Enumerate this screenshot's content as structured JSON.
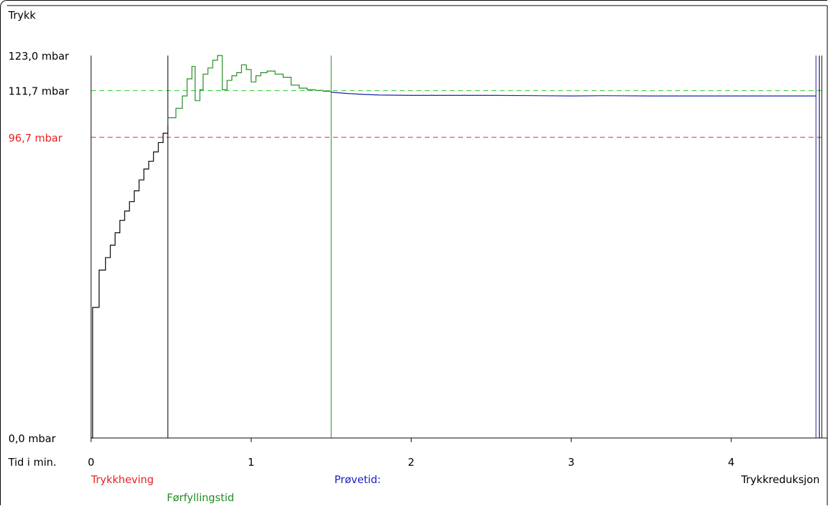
{
  "chart_data": {
    "type": "line",
    "title": "",
    "ylabel": "Trykk",
    "xlabel": "Tid i min.",
    "xlim": [
      0,
      4.6
    ],
    "ylim": [
      0,
      123.0
    ],
    "x_ticks": [
      {
        "value": 0,
        "label": "0"
      },
      {
        "value": 1,
        "label": "1"
      },
      {
        "value": 2,
        "label": "2"
      },
      {
        "value": 3,
        "label": "3"
      },
      {
        "value": 4,
        "label": "4"
      }
    ],
    "y_ticks": [
      {
        "value": 0,
        "label": "0,0 mbar",
        "color": "#000000"
      },
      {
        "value": 96.7,
        "label": "96,7 mbar",
        "color": "#e82020"
      },
      {
        "value": 111.7,
        "label": "111,7 mbar",
        "color": "#000000"
      },
      {
        "value": 123.0,
        "label": "123,0 mbar",
        "color": "#000000"
      }
    ],
    "reference_lines": [
      {
        "y": 111.7,
        "color": "#22cc22",
        "style": "dashed"
      },
      {
        "y": 96.7,
        "color": "#e82020",
        "style": "dashed"
      }
    ],
    "phase_markers": [
      {
        "x": 0.48,
        "color": "#000000"
      },
      {
        "x": 1.5,
        "color": "#228b22"
      },
      {
        "x": 4.53,
        "color": "#1a1aaa"
      },
      {
        "x": 4.55,
        "color": "#000000"
      }
    ],
    "phase_labels": {
      "pressurisation": {
        "text": "Trykkheving",
        "color": "#e82020"
      },
      "prefill": {
        "text": "Førfyllingstid",
        "color": "#228b22"
      },
      "test": {
        "text": "Prøvetid:",
        "color": "#1a1acc"
      },
      "reduction": {
        "text": "Trykkreduksjon",
        "color": "#000000"
      }
    },
    "series": [
      {
        "color": "#000000",
        "step": true,
        "x": [
          0.0,
          0.01,
          0.01,
          0.05,
          0.09,
          0.12,
          0.15,
          0.18,
          0.21,
          0.24,
          0.27,
          0.3,
          0.33,
          0.36,
          0.39,
          0.42,
          0.45,
          0.48
        ],
        "values": [
          0.0,
          0.0,
          42.0,
          54.0,
          58.0,
          62.0,
          66.0,
          70.0,
          73.0,
          76.0,
          79.5,
          83.0,
          86.5,
          89.0,
          92.0,
          95.0,
          98.0,
          100.5
        ]
      },
      {
        "color": "#228b22",
        "step": true,
        "x": [
          0.48,
          0.53,
          0.57,
          0.6,
          0.63,
          0.65,
          0.68,
          0.7,
          0.73,
          0.76,
          0.79,
          0.82,
          0.85,
          0.88,
          0.91,
          0.94,
          0.97,
          1.0,
          1.03,
          1.06,
          1.1,
          1.15,
          1.2,
          1.25,
          1.3,
          1.35,
          1.4,
          1.45,
          1.5
        ],
        "values": [
          103.0,
          106.0,
          110.0,
          115.5,
          119.5,
          108.5,
          112.0,
          117.0,
          119.0,
          121.5,
          123.0,
          112.0,
          115.0,
          116.5,
          117.5,
          120.0,
          118.5,
          114.5,
          116.5,
          117.5,
          118.0,
          117.0,
          116.0,
          113.5,
          112.5,
          112.0,
          111.8,
          111.5,
          111.2
        ]
      },
      {
        "color": "#1a1aaa",
        "step": false,
        "x": [
          1.5,
          1.6,
          1.7,
          1.8,
          2.0,
          2.2,
          2.5,
          2.8,
          3.0,
          3.2,
          3.5,
          3.8,
          4.0,
          4.3,
          4.53
        ],
        "values": [
          111.2,
          110.8,
          110.5,
          110.3,
          110.2,
          110.2,
          110.2,
          110.1,
          110.0,
          110.1,
          110.0,
          110.0,
          110.0,
          110.0,
          110.0
        ]
      }
    ]
  }
}
